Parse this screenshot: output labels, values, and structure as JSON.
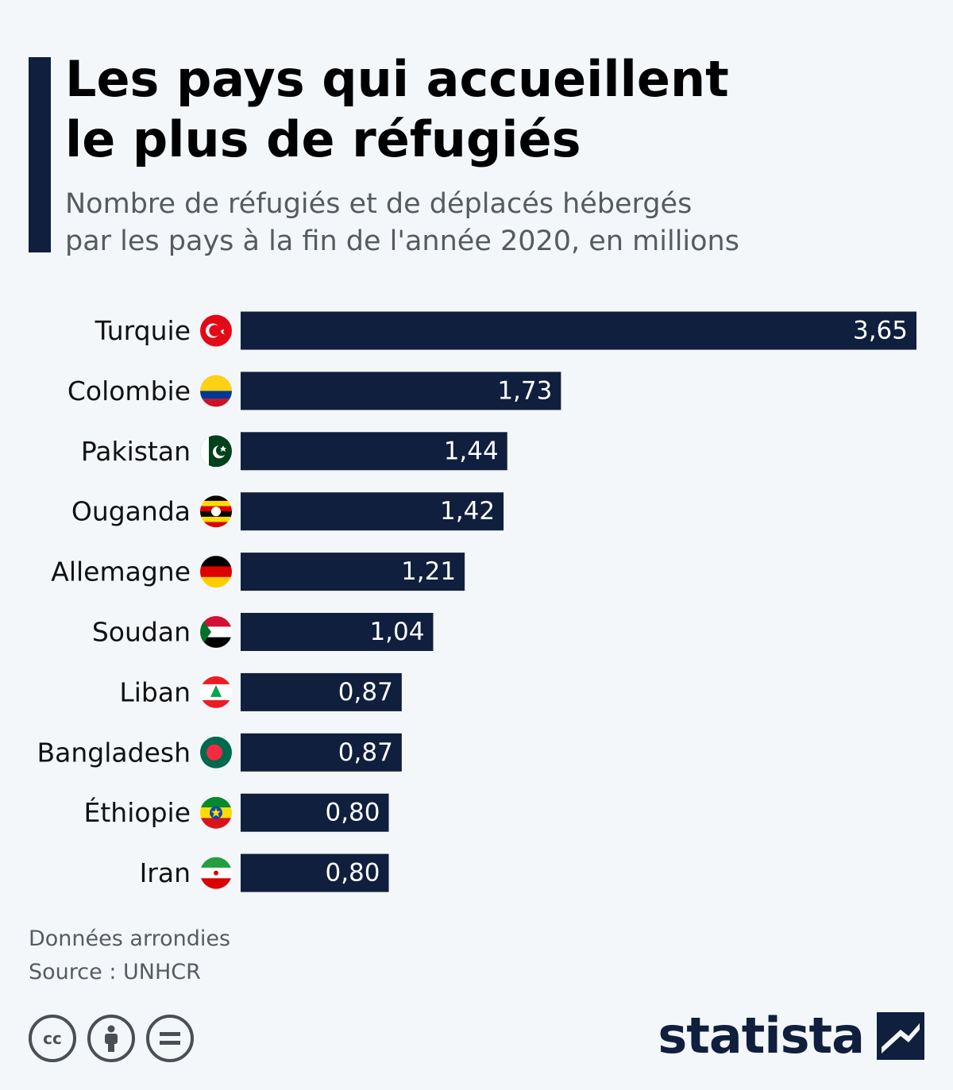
{
  "header": {
    "title_line1": "Les pays qui accueillent",
    "title_line2": "le plus de réfugiés",
    "subtitle_line1": "Nombre de réfugiés et de déplacés hébergés",
    "subtitle_line2": "par les pays à la fin de l'année 2020, en millions"
  },
  "chart_data": {
    "type": "bar",
    "orientation": "horizontal",
    "categories": [
      "Turquie",
      "Colombie",
      "Pakistan",
      "Ouganda",
      "Allemagne",
      "Soudan",
      "Liban",
      "Bangladesh",
      "Éthiopie",
      "Iran"
    ],
    "values": [
      3.65,
      1.73,
      1.44,
      1.42,
      1.21,
      1.04,
      0.87,
      0.87,
      0.8,
      0.8
    ],
    "value_labels": [
      "3,65",
      "1,73",
      "1,44",
      "1,42",
      "1,21",
      "1,04",
      "0,87",
      "0,87",
      "0,80",
      "0,80"
    ],
    "xlim": [
      0,
      3.65
    ],
    "grid": false,
    "legend": "none",
    "bar_color": "#0f1f3d",
    "label_color": "#ffffff",
    "flags": [
      "turkey-flag-icon",
      "colombia-flag-icon",
      "pakistan-flag-icon",
      "uganda-flag-icon",
      "germany-flag-icon",
      "sudan-flag-icon",
      "lebanon-flag-icon",
      "bangladesh-flag-icon",
      "ethiopia-flag-icon",
      "iran-flag-icon"
    ]
  },
  "footer": {
    "note": "Données arrondies",
    "source": "Source : UNHCR",
    "brand": "statista",
    "license_icons": [
      "cc-icon",
      "by-attribution-icon",
      "nd-equal-icon"
    ]
  }
}
